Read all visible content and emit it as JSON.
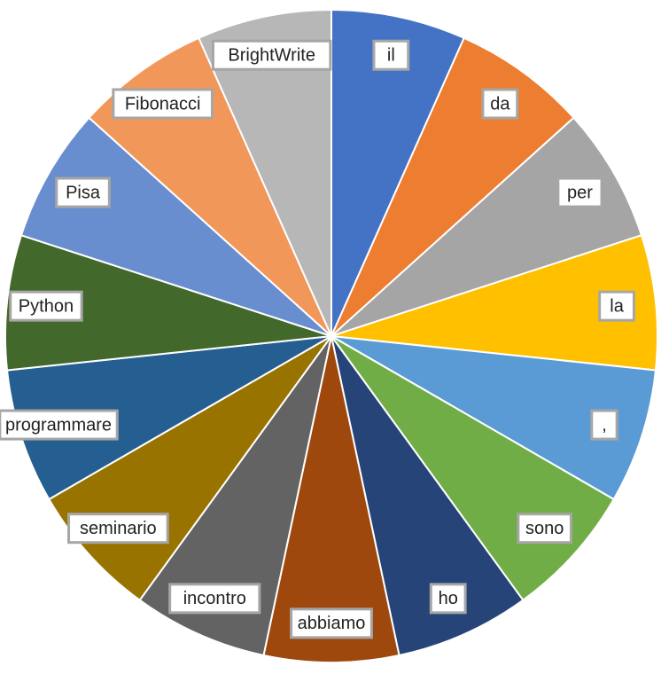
{
  "chart_data": {
    "type": "pie",
    "title": "",
    "categories": [
      "il",
      "da",
      "per",
      "la",
      ",",
      "sono",
      "ho",
      "abbiamo",
      "incontro",
      "seminario",
      "programmare",
      "Python",
      "Pisa",
      "Fibonacci",
      "BrightWrite"
    ],
    "values": [
      1,
      1,
      1,
      1,
      1,
      1,
      1,
      1,
      1,
      1,
      1,
      1,
      1,
      1,
      1
    ],
    "colors": [
      "#4472c4",
      "#ed7d31",
      "#a5a5a5",
      "#ffc000",
      "#5b9bd5",
      "#70ad47",
      "#264478",
      "#9e480e",
      "#636363",
      "#997300",
      "#255e91",
      "#43682b",
      "#698ed0",
      "#f1975a",
      "#b7b7b7"
    ],
    "start_angle_degrees": 0,
    "direction": "clockwise",
    "legend": "none",
    "data_labels": "category names in boxed labels"
  }
}
